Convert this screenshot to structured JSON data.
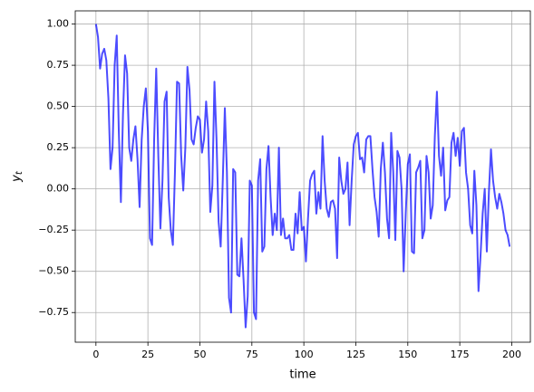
{
  "chart_data": {
    "type": "line",
    "xlabel": "time",
    "ylabel": {
      "base": "y",
      "sub": "t"
    },
    "x": [
      0,
      1,
      2,
      3,
      4,
      5,
      6,
      7,
      8,
      9,
      10,
      11,
      12,
      13,
      14,
      15,
      16,
      17,
      18,
      19,
      20,
      21,
      22,
      23,
      24,
      25,
      26,
      27,
      28,
      29,
      30,
      31,
      32,
      33,
      34,
      35,
      36,
      37,
      38,
      39,
      40,
      41,
      42,
      43,
      44,
      45,
      46,
      47,
      48,
      49,
      50,
      51,
      52,
      53,
      54,
      55,
      56,
      57,
      58,
      59,
      60,
      61,
      62,
      63,
      64,
      65,
      66,
      67,
      68,
      69,
      70,
      71,
      72,
      73,
      74,
      75,
      76,
      77,
      78,
      79,
      80,
      81,
      82,
      83,
      84,
      85,
      86,
      87,
      88,
      89,
      90,
      91,
      92,
      93,
      94,
      95,
      96,
      97,
      98,
      99,
      100,
      101,
      102,
      103,
      104,
      105,
      106,
      107,
      108,
      109,
      110,
      111,
      112,
      113,
      114,
      115,
      116,
      117,
      118,
      119,
      120,
      121,
      122,
      123,
      124,
      125,
      126,
      127,
      128,
      129,
      130,
      131,
      132,
      133,
      134,
      135,
      136,
      137,
      138,
      139,
      140,
      141,
      142,
      143,
      144,
      145,
      146,
      147,
      148,
      149,
      150,
      151,
      152,
      153,
      154,
      155,
      156,
      157,
      158,
      159,
      160,
      161,
      162,
      163,
      164,
      165,
      166,
      167,
      168,
      169,
      170,
      171,
      172,
      173,
      174,
      175,
      176,
      177,
      178,
      179,
      180,
      181,
      182,
      183,
      184,
      185,
      186,
      187,
      188,
      189,
      190,
      191,
      192,
      193,
      194,
      195,
      196,
      197,
      198,
      199
    ],
    "series": [
      {
        "color": "#0000ff",
        "alpha": 0.7,
        "values": [
          1.0,
          0.92,
          0.73,
          0.82,
          0.85,
          0.78,
          0.55,
          0.12,
          0.25,
          0.75,
          0.93,
          0.35,
          -0.08,
          0.45,
          0.81,
          0.7,
          0.25,
          0.17,
          0.3,
          0.38,
          0.18,
          -0.11,
          0.3,
          0.5,
          0.61,
          0.35,
          -0.3,
          -0.34,
          0.3,
          0.73,
          0.2,
          -0.24,
          0.05,
          0.53,
          0.59,
          -0.05,
          -0.25,
          -0.34,
          0.1,
          0.65,
          0.64,
          0.2,
          -0.01,
          0.25,
          0.74,
          0.6,
          0.3,
          0.27,
          0.37,
          0.44,
          0.42,
          0.22,
          0.3,
          0.53,
          0.35,
          -0.14,
          0.02,
          0.65,
          0.3,
          -0.2,
          -0.35,
          0.05,
          0.49,
          0.1,
          -0.66,
          -0.75,
          0.12,
          0.1,
          -0.52,
          -0.53,
          -0.3,
          -0.55,
          -0.84,
          -0.65,
          0.05,
          0.02,
          -0.75,
          -0.79,
          0.05,
          0.18,
          -0.38,
          -0.35,
          0.12,
          0.26,
          -0.05,
          -0.28,
          -0.15,
          -0.25,
          0.25,
          -0.28,
          -0.18,
          -0.3,
          -0.3,
          -0.28,
          -0.37,
          -0.37,
          -0.15,
          -0.27,
          -0.02,
          -0.25,
          -0.23,
          -0.44,
          -0.18,
          0.05,
          0.09,
          0.11,
          -0.15,
          -0.02,
          -0.12,
          0.32,
          0.05,
          -0.12,
          -0.17,
          -0.08,
          -0.07,
          -0.12,
          -0.42,
          0.19,
          0.05,
          -0.03,
          0.0,
          0.16,
          -0.22,
          0.05,
          0.27,
          0.32,
          0.34,
          0.18,
          0.19,
          0.1,
          0.3,
          0.32,
          0.32,
          0.12,
          -0.05,
          -0.14,
          -0.29,
          0.12,
          0.28,
          0.1,
          -0.18,
          -0.3,
          0.34,
          0.1,
          -0.31,
          0.23,
          0.19,
          0.0,
          -0.5,
          -0.15,
          0.15,
          0.21,
          -0.38,
          -0.39,
          0.1,
          0.13,
          0.17,
          -0.3,
          -0.25,
          0.2,
          0.1,
          -0.18,
          -0.1,
          0.32,
          0.59,
          0.2,
          0.08,
          0.25,
          -0.13,
          -0.07,
          -0.05,
          0.28,
          0.34,
          0.2,
          0.31,
          0.14,
          0.35,
          0.37,
          0.1,
          0.0,
          -0.22,
          -0.27,
          0.11,
          -0.1,
          -0.62,
          -0.4,
          -0.15,
          0.0,
          -0.38,
          -0.02,
          0.24,
          0.05,
          -0.05,
          -0.12,
          -0.03,
          -0.08,
          -0.15,
          -0.25,
          -0.28,
          -0.35
        ]
      }
    ],
    "xlim": [
      -9.95,
      208.95
    ],
    "ylim": [
      -0.93,
      1.08
    ],
    "xticks": [
      0,
      25,
      50,
      75,
      100,
      125,
      150,
      175,
      200
    ],
    "yticks": [
      {
        "value": 1,
        "label": "1.00"
      },
      {
        "value": 0.75,
        "label": "0.75"
      },
      {
        "value": 0.5,
        "label": "0.50"
      },
      {
        "value": 0.25,
        "label": "0.25"
      },
      {
        "value": 0,
        "label": "0.00"
      },
      {
        "value": -0.25,
        "label": "−0.25"
      },
      {
        "value": -0.5,
        "label": "−0.50"
      },
      {
        "value": -0.75,
        "label": "−0.75"
      }
    ],
    "grid": true
  }
}
